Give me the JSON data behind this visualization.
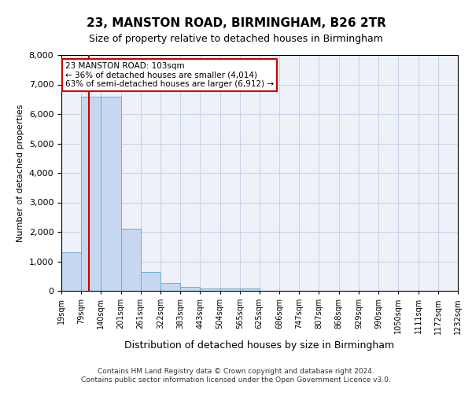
{
  "title": "23, MANSTON ROAD, BIRMINGHAM, B26 2TR",
  "subtitle": "Size of property relative to detached houses in Birmingham",
  "xlabel": "Distribution of detached houses by size in Birmingham",
  "ylabel": "Number of detached properties",
  "annotation_title": "23 MANSTON ROAD: 103sqm",
  "annotation_line1": "← 36% of detached houses are smaller (4,014)",
  "annotation_line2": "63% of semi-detached houses are larger (6,912) →",
  "property_size_sqm": 103,
  "bin_edges": [
    19,
    79,
    140,
    201,
    261,
    322,
    383,
    443,
    504,
    565,
    625,
    686,
    747,
    807,
    868,
    929,
    990,
    1050,
    1111,
    1172,
    1232
  ],
  "bar_heights": [
    1300,
    6600,
    6600,
    2100,
    650,
    280,
    130,
    80,
    80,
    80,
    0,
    0,
    0,
    0,
    0,
    0,
    0,
    0,
    0,
    0
  ],
  "bar_color": "#c5d8f0",
  "bar_edge_color": "#6baed6",
  "vline_color": "#cc0000",
  "vline_x": 103,
  "grid_color": "#c8d4e8",
  "background_color": "#eef2f8",
  "footer_line1": "Contains HM Land Registry data © Crown copyright and database right 2024.",
  "footer_line2": "Contains public sector information licensed under the Open Government Licence v3.0.",
  "ylim": [
    0,
    8000
  ],
  "yticks": [
    0,
    1000,
    2000,
    3000,
    4000,
    5000,
    6000,
    7000,
    8000
  ]
}
